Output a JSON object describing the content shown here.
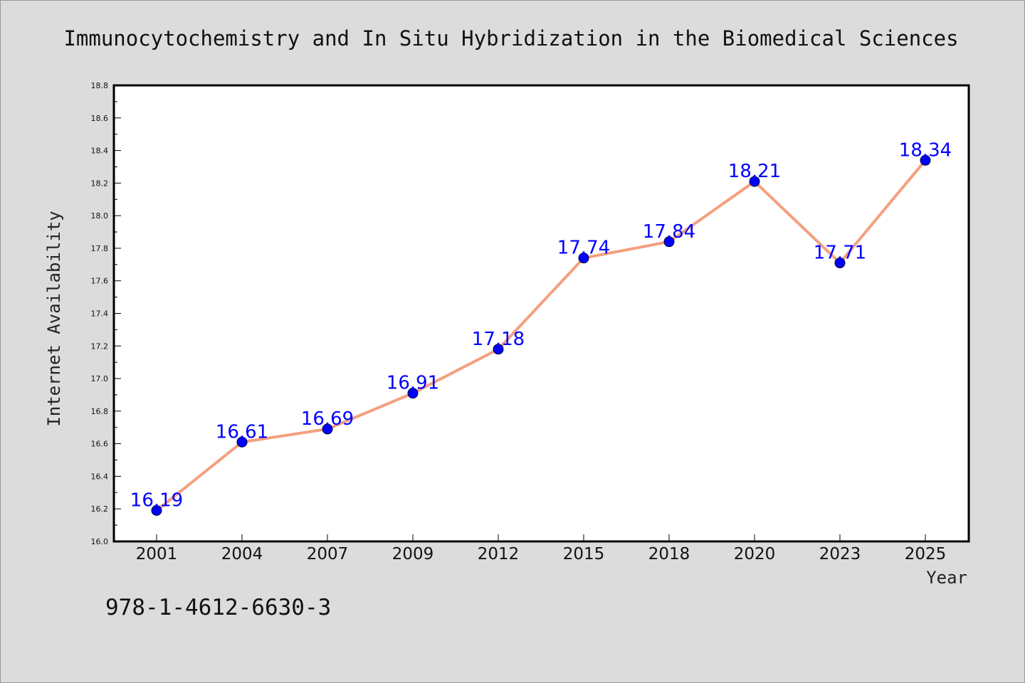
{
  "chart_data": {
    "type": "line",
    "title": "Immunocytochemistry and In Situ Hybridization in the Biomedical Sciences",
    "xlabel": "Year",
    "ylabel": "Internet Availability",
    "categories": [
      "2001",
      "2004",
      "2007",
      "2009",
      "2012",
      "2015",
      "2018",
      "2020",
      "2023",
      "2025"
    ],
    "series": [
      {
        "values": [
          16.19,
          16.61,
          16.69,
          16.91,
          17.18,
          17.74,
          17.84,
          18.21,
          17.71,
          18.34
        ]
      }
    ],
    "ylim": [
      16.0,
      18.8
    ],
    "yticks": [
      "16.0",
      "16.2",
      "16.4",
      "16.6",
      "16.8",
      "17.0",
      "17.2",
      "17.4",
      "17.6",
      "17.8",
      "18.0",
      "18.2",
      "18.4",
      "18.6",
      "18.8"
    ],
    "grid": false,
    "legend": "none",
    "data_labels": true,
    "colors": {
      "line": "#f4a07f",
      "marker": "#0000ff",
      "label": "#0000ff",
      "background": "#dcdcdc",
      "plot_area": "#ffffff"
    }
  },
  "annotation": "978-1-4612-6630-3"
}
